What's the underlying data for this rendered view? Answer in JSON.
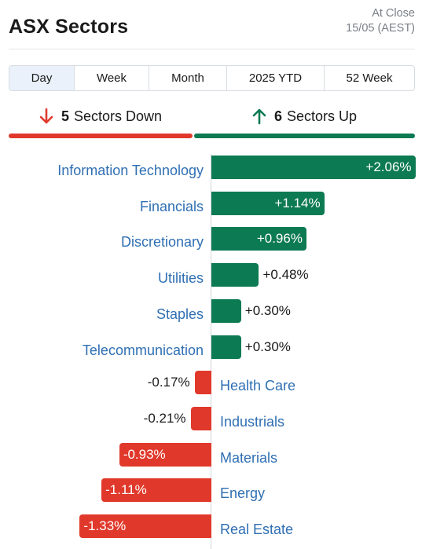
{
  "header": {
    "title": "ASX Sectors",
    "status_line1": "At Close",
    "status_line2": "15/05 (AEST)"
  },
  "tabs": [
    {
      "label": "Day",
      "active": true
    },
    {
      "label": "Week",
      "active": false
    },
    {
      "label": "Month",
      "active": false
    },
    {
      "label": "2025 YTD",
      "active": false
    },
    {
      "label": "52 Week",
      "active": false
    }
  ],
  "summary": {
    "down_count": "5",
    "down_text": "Sectors Down",
    "up_count": "6",
    "up_text": "Sectors Up",
    "down_color": "#e0392b",
    "up_color": "#0c7a53",
    "down_icon": "arrow-down-icon",
    "up_icon": "arrow-up-icon"
  },
  "chart_data": {
    "type": "bar",
    "categories": [
      "Information Technology",
      "Financials",
      "Discretionary",
      "Utilities",
      "Staples",
      "Telecommunication",
      "Health Care",
      "Industrials",
      "Materials",
      "Energy",
      "Real Estate"
    ],
    "values": [
      2.06,
      1.14,
      0.96,
      0.48,
      0.3,
      0.3,
      -0.17,
      -0.21,
      -0.93,
      -1.11,
      -1.33
    ],
    "labels": [
      "+2.06%",
      "+1.14%",
      "+0.96%",
      "+0.48%",
      "+0.30%",
      "+0.30%",
      "-0.17%",
      "-0.21%",
      "-0.93%",
      "-1.11%",
      "-1.33%"
    ],
    "positive_color": "#0c7a53",
    "negative_color": "#e0392b",
    "label_color": "#2f6fb3"
  }
}
